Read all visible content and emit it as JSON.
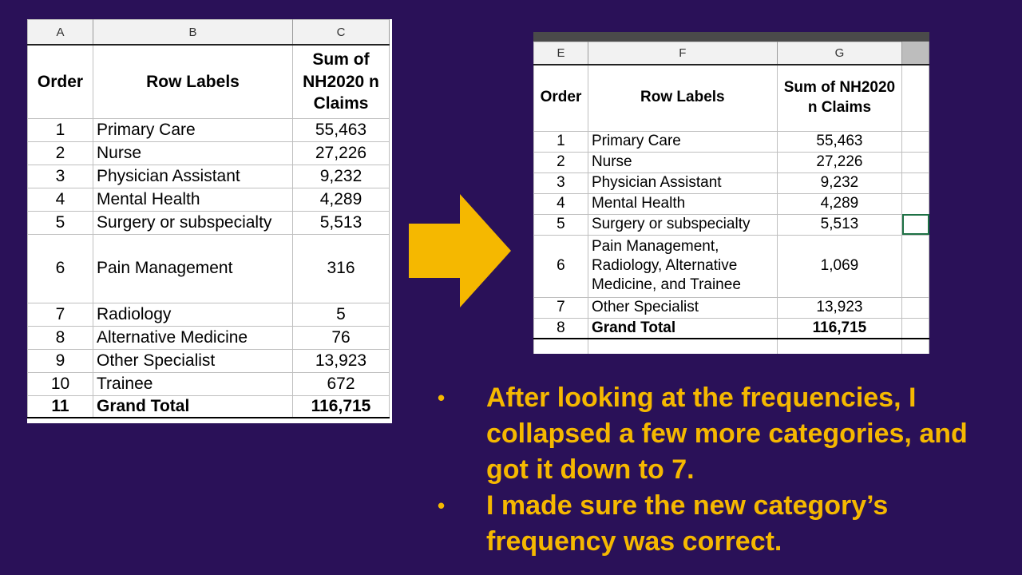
{
  "left_sheet": {
    "columns": [
      "A",
      "B",
      "C"
    ],
    "header": {
      "order": "Order",
      "row_labels": "Row Labels",
      "sum": "Sum of NH2020 n Claims"
    },
    "rows": [
      {
        "order": "1",
        "label": "Primary Care",
        "value": "55,463"
      },
      {
        "order": "2",
        "label": "Nurse",
        "value": "27,226"
      },
      {
        "order": "3",
        "label": "Physician Assistant",
        "value": "9,232"
      },
      {
        "order": "4",
        "label": "Mental Health",
        "value": "4,289"
      },
      {
        "order": "5",
        "label": "Surgery or subspecialty",
        "value": "5,513"
      },
      {
        "order": "6",
        "label": "Pain Management",
        "value": "316"
      },
      {
        "order": "7",
        "label": "Radiology",
        "value": "5"
      },
      {
        "order": "8",
        "label": "Alternative Medicine",
        "value": "76"
      },
      {
        "order": "9",
        "label": "Other Specialist",
        "value": "13,923"
      },
      {
        "order": "10",
        "label": "Trainee",
        "value": "672"
      }
    ],
    "total": {
      "order": "11",
      "label": "Grand Total",
      "value": "116,715"
    }
  },
  "right_sheet": {
    "columns": [
      "E",
      "F",
      "G"
    ],
    "header": {
      "order": "Order",
      "row_labels": "Row Labels",
      "sum": "Sum of NH2020 n Claims"
    },
    "rows": [
      {
        "order": "1",
        "label": "Primary Care",
        "value": "55,463"
      },
      {
        "order": "2",
        "label": "Nurse",
        "value": "27,226"
      },
      {
        "order": "3",
        "label": "Physician Assistant",
        "value": "9,232"
      },
      {
        "order": "4",
        "label": "Mental Health",
        "value": "4,289"
      },
      {
        "order": "5",
        "label": "Surgery or subspecialty",
        "value": "5,513"
      },
      {
        "order": "6",
        "label": "Pain Management, Radiology, Alternative Medicine, and Trainee",
        "value": "1,069"
      },
      {
        "order": "7",
        "label": "Other Specialist",
        "value": "13,923"
      }
    ],
    "total": {
      "order": "8",
      "label": "Grand Total",
      "value": "116,715"
    }
  },
  "colors": {
    "background": "#2a1158",
    "accent": "#f5b800",
    "selection": "#1e7145"
  },
  "arrow_icon": "right-arrow-icon",
  "bullets": [
    "After looking at the frequencies, I collapsed a few more categories, and got it down to 7.",
    "I made sure the new category’s frequency was correct."
  ],
  "bullet_symbol": "•"
}
